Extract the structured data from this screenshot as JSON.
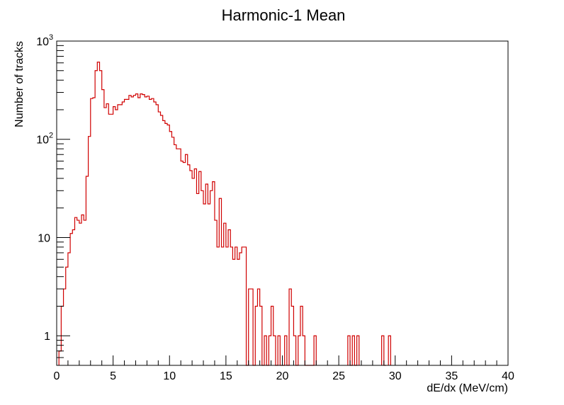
{
  "chart_data": {
    "type": "bar",
    "histogram": true,
    "title": "Harmonic-1 Mean",
    "xlabel": "dE/dx (MeV/cm)",
    "ylabel": "Number of tracks",
    "xlim": [
      0,
      40
    ],
    "ylim": [
      0.5,
      1000
    ],
    "yscale": "log",
    "grid": false,
    "bin_width": 0.2,
    "line_color": "#d00000",
    "x_ticks": [
      {
        "value": 0,
        "label": "0"
      },
      {
        "value": 5,
        "label": "5"
      },
      {
        "value": 10,
        "label": "10"
      },
      {
        "value": 15,
        "label": "15"
      },
      {
        "value": 20,
        "label": "20"
      },
      {
        "value": 25,
        "label": "25"
      },
      {
        "value": 30,
        "label": "30"
      },
      {
        "value": 35,
        "label": "35"
      },
      {
        "value": 40,
        "label": "40"
      }
    ],
    "y_ticks": [
      {
        "value": 1,
        "label": "1"
      },
      {
        "value": 10,
        "label": "10"
      },
      {
        "value": 100,
        "label": "10",
        "exp": "2"
      },
      {
        "value": 1000,
        "label": "10",
        "exp": "3"
      }
    ],
    "bins": [
      [
        0.2,
        0.7
      ],
      [
        0.4,
        2
      ],
      [
        0.6,
        3
      ],
      [
        0.8,
        5
      ],
      [
        1.0,
        7
      ],
      [
        1.2,
        11
      ],
      [
        1.4,
        12
      ],
      [
        1.6,
        16
      ],
      [
        1.8,
        15
      ],
      [
        2.0,
        14
      ],
      [
        2.2,
        17
      ],
      [
        2.4,
        15
      ],
      [
        2.6,
        42
      ],
      [
        2.8,
        107
      ],
      [
        3.0,
        260
      ],
      [
        3.2,
        265
      ],
      [
        3.4,
        500
      ],
      [
        3.6,
        610
      ],
      [
        3.8,
        500
      ],
      [
        4.0,
        320
      ],
      [
        4.2,
        210
      ],
      [
        4.4,
        230
      ],
      [
        4.6,
        180
      ],
      [
        4.8,
        180
      ],
      [
        5.0,
        215
      ],
      [
        5.2,
        200
      ],
      [
        5.4,
        225
      ],
      [
        5.6,
        225
      ],
      [
        5.8,
        240
      ],
      [
        6.0,
        255
      ],
      [
        6.2,
        255
      ],
      [
        6.4,
        280
      ],
      [
        6.6,
        270
      ],
      [
        6.8,
        280
      ],
      [
        7.0,
        290
      ],
      [
        7.2,
        265
      ],
      [
        7.4,
        290
      ],
      [
        7.6,
        285
      ],
      [
        7.8,
        270
      ],
      [
        8.0,
        275
      ],
      [
        8.2,
        255
      ],
      [
        8.4,
        260
      ],
      [
        8.6,
        240
      ],
      [
        8.8,
        225
      ],
      [
        9.0,
        190
      ],
      [
        9.2,
        175
      ],
      [
        9.4,
        155
      ],
      [
        9.6,
        145
      ],
      [
        9.8,
        140
      ],
      [
        10.0,
        120
      ],
      [
        10.2,
        105
      ],
      [
        10.4,
        88
      ],
      [
        10.6,
        80
      ],
      [
        10.8,
        80
      ],
      [
        11.0,
        60
      ],
      [
        11.2,
        58
      ],
      [
        11.4,
        70
      ],
      [
        11.6,
        55
      ],
      [
        11.8,
        48
      ],
      [
        12.0,
        40
      ],
      [
        12.2,
        50
      ],
      [
        12.4,
        28
      ],
      [
        12.6,
        47
      ],
      [
        12.8,
        30
      ],
      [
        13.0,
        22
      ],
      [
        13.2,
        35
      ],
      [
        13.4,
        22
      ],
      [
        13.6,
        30
      ],
      [
        13.8,
        37
      ],
      [
        14.0,
        15
      ],
      [
        14.2,
        8
      ],
      [
        14.4,
        25
      ],
      [
        14.6,
        8
      ],
      [
        14.8,
        14
      ],
      [
        15.0,
        8
      ],
      [
        15.2,
        12
      ],
      [
        15.4,
        8
      ],
      [
        15.6,
        6
      ],
      [
        15.8,
        8
      ],
      [
        16.0,
        6
      ],
      [
        16.2,
        7
      ],
      [
        16.4,
        8
      ],
      [
        16.6,
        8
      ],
      [
        16.8,
        0.4
      ],
      [
        17.0,
        3
      ],
      [
        17.2,
        3
      ],
      [
        17.4,
        0.4
      ],
      [
        17.6,
        2
      ],
      [
        17.8,
        3
      ],
      [
        18.0,
        2
      ],
      [
        18.2,
        0.4
      ],
      [
        18.4,
        1
      ],
      [
        18.6,
        0.4
      ],
      [
        18.8,
        1
      ],
      [
        19.0,
        2
      ],
      [
        19.2,
        1
      ],
      [
        19.4,
        0.4
      ],
      [
        19.6,
        1
      ],
      [
        19.8,
        0.4
      ],
      [
        20.0,
        0.4
      ],
      [
        20.2,
        1
      ],
      [
        20.4,
        0.4
      ],
      [
        20.6,
        3
      ],
      [
        20.8,
        2
      ],
      [
        21.0,
        1
      ],
      [
        21.2,
        0.4
      ],
      [
        21.4,
        1
      ],
      [
        21.6,
        2
      ],
      [
        21.8,
        1
      ],
      [
        22.0,
        0.4
      ],
      [
        22.2,
        0.4
      ],
      [
        22.4,
        0.4
      ],
      [
        22.6,
        0.4
      ],
      [
        22.8,
        1
      ],
      [
        25.8,
        1
      ],
      [
        26.0,
        0.4
      ],
      [
        26.2,
        1
      ],
      [
        26.4,
        0.4
      ],
      [
        26.6,
        1
      ],
      [
        28.8,
        1
      ],
      [
        29.0,
        0.4
      ],
      [
        29.4,
        1
      ]
    ]
  }
}
